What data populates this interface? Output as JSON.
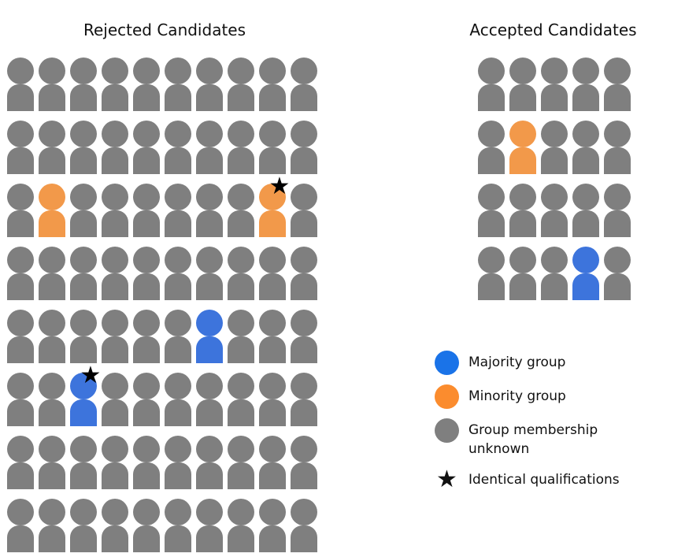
{
  "colors": {
    "unknown": "#7f7f7f",
    "minority": "#f2994a",
    "majority": "#3d74dc",
    "legend_majority": "#1a73e8",
    "legend_minority": "#fb8c2e",
    "star": "#000000"
  },
  "rejected": {
    "title": "Rejected Candidates",
    "rows": [
      "uuuuuuuuuu",
      "uuuuuuuuuu",
      "unuuuuuunu",
      "uuuuuuuuuu",
      "uuuuuujuuu",
      "uujuuuuuuu",
      "uuuuuuuuuu",
      "uuuuuuuuuu"
    ],
    "stars": [
      [
        2,
        8
      ],
      [
        5,
        2
      ]
    ]
  },
  "accepted": {
    "title": "Accepted Candidates",
    "rows": [
      "uuuuu",
      "unuuu",
      "uuuuu",
      "uuuju"
    ],
    "stars": []
  },
  "legend": {
    "majority": "Majority group",
    "minority": "Minority group",
    "unknown": "Group membership unknown",
    "identical": "Identical qualifications"
  }
}
